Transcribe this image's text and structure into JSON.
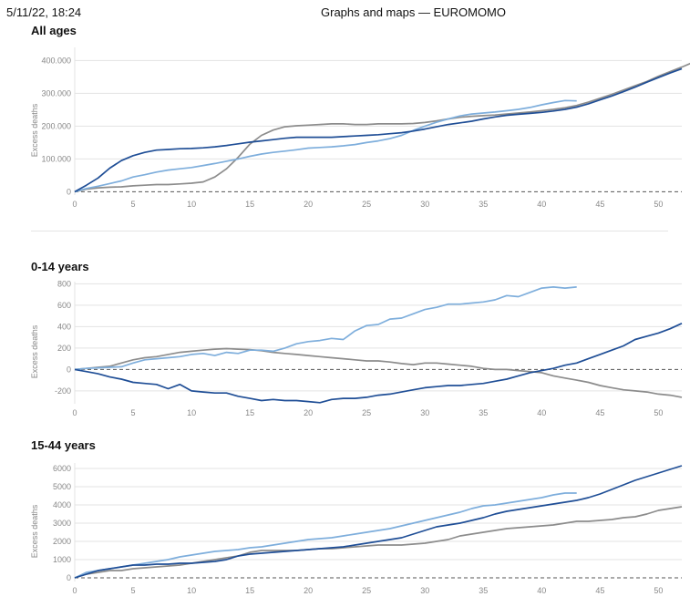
{
  "header": {
    "date": "5/11/22, 18:24",
    "title": "Graphs and maps — EUROMOMO"
  },
  "colors": {
    "series_dark": "#1f4e96",
    "series_light": "#7eaedc",
    "series_gray": "#8c8c8c",
    "grid": "#e3e3e3",
    "zero_line": "#555555"
  },
  "chart_data": [
    {
      "type": "line",
      "title": "All ages",
      "ylabel": "Excess deaths",
      "xlim": [
        0,
        52
      ],
      "ylim": [
        -10000,
        440000
      ],
      "x_ticks": [
        0,
        5,
        10,
        15,
        20,
        25,
        30,
        35,
        40,
        45,
        50
      ],
      "y_ticks": [
        0,
        100000,
        200000,
        300000,
        400000
      ],
      "y_tick_labels": [
        "0",
        "100.000",
        "200.000",
        "300.000",
        "400.000"
      ],
      "series": [
        {
          "color": "series_gray",
          "x_start": 0,
          "values": [
            0,
            8000,
            12000,
            14000,
            15000,
            18000,
            20000,
            22000,
            22000,
            24000,
            26000,
            30000,
            45000,
            70000,
            105000,
            145000,
            172000,
            188000,
            198000,
            201000,
            203000,
            205000,
            207000,
            207000,
            205000,
            205000,
            207000,
            207000,
            207000,
            208000,
            211000,
            216000,
            222000,
            227000,
            230000,
            232000,
            234000,
            237000,
            240000,
            243000,
            247000,
            251000,
            256000,
            263000,
            273000,
            285000,
            297000,
            310000,
            323000,
            336000,
            352000,
            366000,
            380000,
            395000,
            410000
          ]
        },
        {
          "color": "series_light",
          "x_start": 0,
          "values": [
            0,
            10000,
            17000,
            25000,
            33000,
            45000,
            52000,
            60000,
            66000,
            70000,
            74000,
            80000,
            86000,
            93000,
            100000,
            108000,
            115000,
            120000,
            124000,
            128000,
            133000,
            135000,
            137000,
            140000,
            144000,
            150000,
            155000,
            162000,
            172000,
            187000,
            200000,
            212000,
            222000,
            231000,
            237000,
            240000,
            243000,
            247000,
            251000,
            257000,
            265000,
            272000,
            278000,
            277000
          ]
        },
        {
          "color": "series_dark",
          "x_start": 0,
          "values": [
            0,
            20000,
            42000,
            72000,
            95000,
            110000,
            120000,
            127000,
            129000,
            131000,
            132000,
            134000,
            137000,
            141000,
            146000,
            151000,
            155000,
            159000,
            163000,
            166000,
            166000,
            166000,
            166000,
            168000,
            170000,
            172000,
            174000,
            177000,
            180000,
            185000,
            191000,
            198000,
            205000,
            210000,
            215000,
            222000,
            228000,
            233000,
            236000,
            239000,
            242000,
            246000,
            251000,
            258000,
            268000,
            280000,
            292000,
            305000,
            319000,
            334000,
            348000,
            362000,
            375000
          ]
        }
      ]
    },
    {
      "type": "line",
      "title": "0-14 years",
      "ylabel": "Excess deaths",
      "xlim": [
        0,
        52
      ],
      "ylim": [
        -320,
        820
      ],
      "x_ticks": [
        0,
        5,
        10,
        15,
        20,
        25,
        30,
        35,
        40,
        45,
        50
      ],
      "y_ticks": [
        -200,
        0,
        200,
        400,
        600,
        800
      ],
      "y_tick_labels": [
        "-200",
        "0",
        "200",
        "400",
        "600",
        "800"
      ],
      "series": [
        {
          "color": "series_gray",
          "x_start": 0,
          "values": [
            0,
            10,
            20,
            30,
            60,
            90,
            110,
            120,
            140,
            160,
            170,
            180,
            190,
            195,
            190,
            185,
            175,
            160,
            150,
            140,
            130,
            120,
            110,
            100,
            90,
            80,
            80,
            70,
            55,
            45,
            60,
            60,
            50,
            40,
            30,
            10,
            0,
            0,
            -10,
            -20,
            -30,
            -60,
            -80,
            -100,
            -120,
            -150,
            -170,
            -190,
            -200,
            -210,
            -230,
            -240,
            -260
          ]
        },
        {
          "color": "series_light",
          "x_start": 0,
          "values": [
            0,
            10,
            15,
            20,
            25,
            60,
            90,
            100,
            110,
            120,
            140,
            150,
            130,
            160,
            150,
            180,
            180,
            170,
            200,
            240,
            260,
            270,
            290,
            280,
            360,
            410,
            420,
            470,
            480,
            520,
            560,
            580,
            610,
            610,
            620,
            630,
            650,
            690,
            680,
            720,
            760,
            770,
            760,
            770
          ]
        },
        {
          "color": "series_dark",
          "x_start": 0,
          "values": [
            0,
            -20,
            -40,
            -70,
            -90,
            -120,
            -130,
            -140,
            -180,
            -140,
            -200,
            -210,
            -220,
            -220,
            -250,
            -270,
            -290,
            -280,
            -290,
            -290,
            -300,
            -310,
            -280,
            -270,
            -270,
            -260,
            -240,
            -230,
            -210,
            -190,
            -170,
            -160,
            -150,
            -150,
            -140,
            -130,
            -110,
            -90,
            -60,
            -30,
            -10,
            10,
            40,
            60,
            100,
            140,
            180,
            220,
            280,
            310,
            340,
            380,
            430
          ]
        }
      ]
    },
    {
      "type": "line",
      "title": "15-44 years",
      "ylabel": "Excess deaths",
      "xlim": [
        0,
        52
      ],
      "ylim": [
        -200,
        6300
      ],
      "x_ticks": [
        0,
        5,
        10,
        15,
        20,
        25,
        30,
        35,
        40,
        45,
        50
      ],
      "y_ticks": [
        0,
        1000,
        2000,
        3000,
        4000,
        5000,
        6000
      ],
      "y_tick_labels": [
        "0",
        "1000",
        "2000",
        "3000",
        "4000",
        "5000",
        "6000"
      ],
      "series": [
        {
          "color": "series_gray",
          "x_start": 0,
          "values": [
            0,
            200,
            300,
            400,
            400,
            500,
            550,
            600,
            650,
            700,
            800,
            900,
            1000,
            1100,
            1200,
            1400,
            1500,
            1500,
            1500,
            1500,
            1550,
            1600,
            1600,
            1650,
            1700,
            1750,
            1800,
            1800,
            1800,
            1850,
            1900,
            2000,
            2100,
            2300,
            2400,
            2500,
            2600,
            2700,
            2750,
            2800,
            2850,
            2900,
            3000,
            3100,
            3100,
            3150,
            3200,
            3300,
            3350,
            3500,
            3700,
            3800,
            3900
          ]
        },
        {
          "color": "series_light",
          "x_start": 0,
          "values": [
            0,
            300,
            400,
            500,
            600,
            700,
            800,
            900,
            1000,
            1150,
            1250,
            1350,
            1450,
            1500,
            1550,
            1650,
            1700,
            1800,
            1900,
            2000,
            2100,
            2150,
            2200,
            2300,
            2400,
            2500,
            2600,
            2700,
            2850,
            3000,
            3150,
            3300,
            3450,
            3600,
            3800,
            3950,
            4000,
            4100,
            4200,
            4300,
            4400,
            4550,
            4650,
            4650
          ]
        },
        {
          "color": "series_dark",
          "x_start": 0,
          "values": [
            0,
            200,
            400,
            500,
            600,
            700,
            700,
            750,
            750,
            800,
            800,
            850,
            900,
            1000,
            1200,
            1300,
            1350,
            1400,
            1450,
            1500,
            1550,
            1600,
            1650,
            1700,
            1800,
            1900,
            2000,
            2100,
            2200,
            2400,
            2600,
            2800,
            2900,
            3000,
            3150,
            3300,
            3500,
            3650,
            3750,
            3850,
            3950,
            4050,
            4150,
            4250,
            4400,
            4600,
            4850,
            5100,
            5350,
            5550,
            5750,
            5950,
            6150
          ]
        }
      ]
    }
  ]
}
